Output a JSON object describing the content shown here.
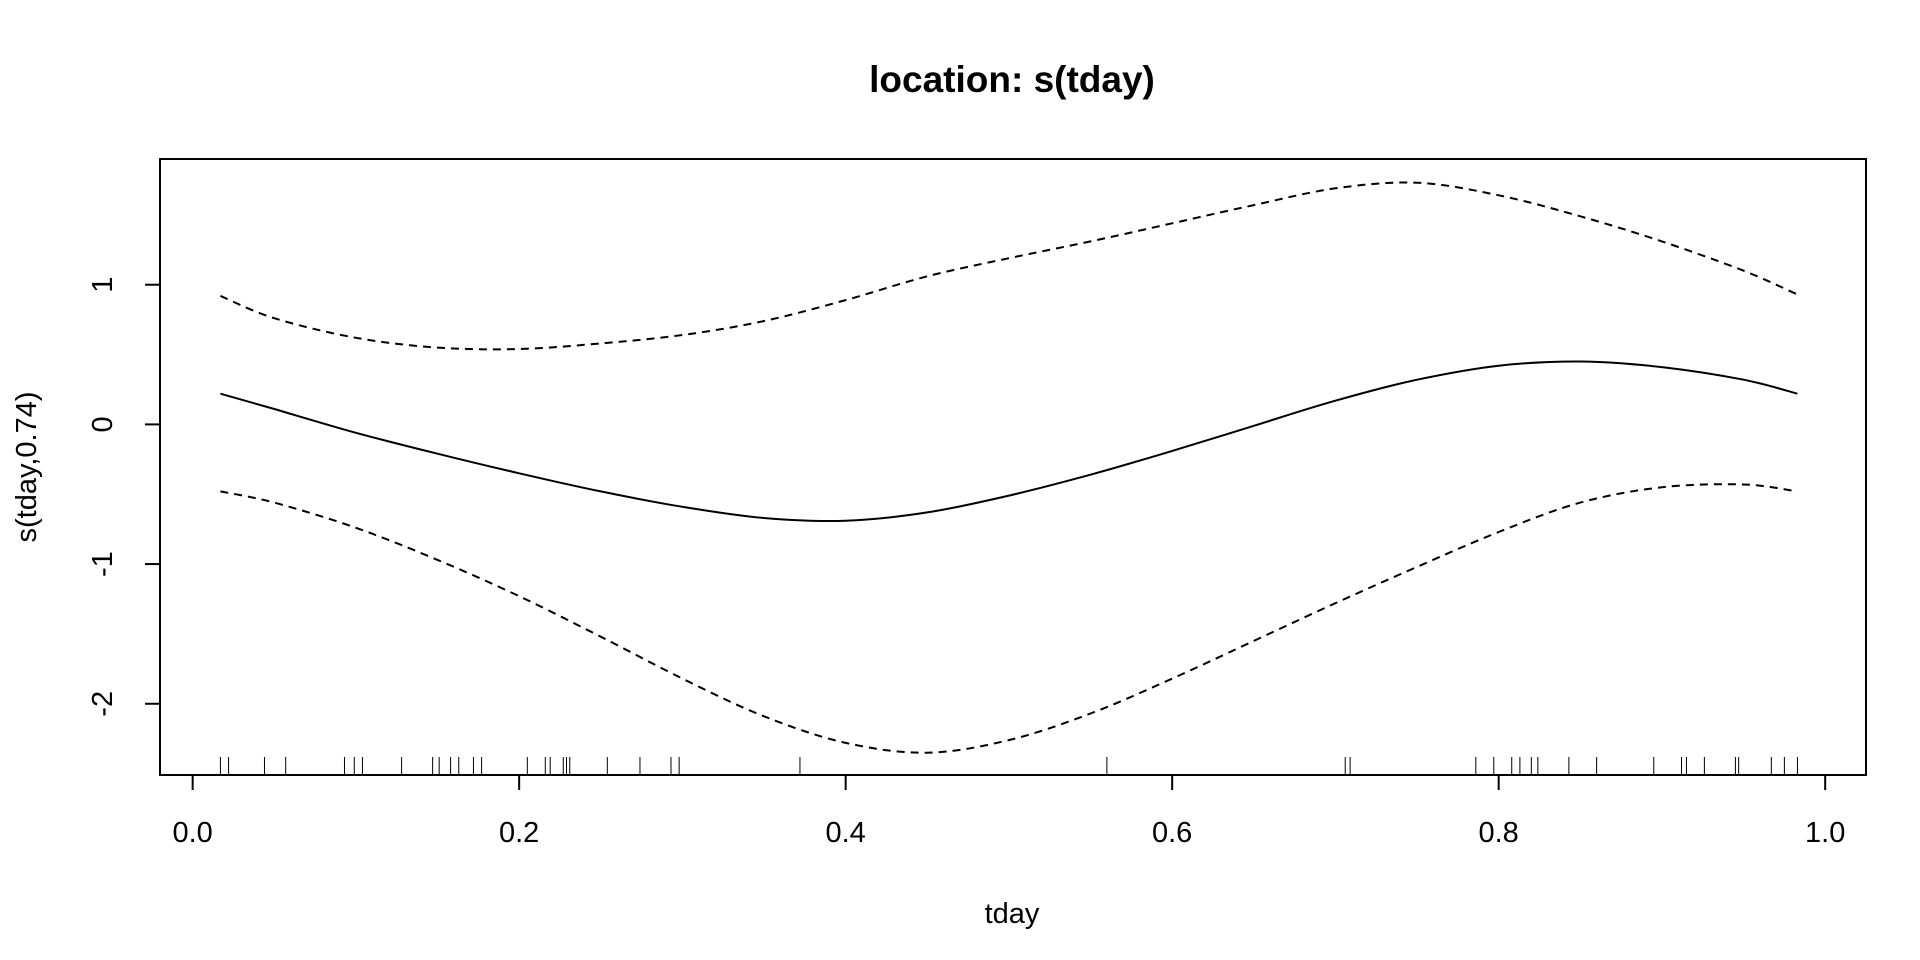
{
  "chart_data": {
    "type": "line",
    "title": "location: s(tday)",
    "xlabel": "tday",
    "ylabel": "s(tday,0.74)",
    "xlim": [
      -0.02,
      1.025
    ],
    "ylim": [
      -2.51,
      1.9
    ],
    "xticks": [
      0.0,
      0.2,
      0.4,
      0.6,
      0.8,
      1.0
    ],
    "xtick_labels": [
      "0.0",
      "0.2",
      "0.4",
      "0.6",
      "0.8",
      "1.0"
    ],
    "yticks": [
      -2,
      -1,
      0,
      1
    ],
    "ytick_labels": [
      "-2",
      "-1",
      "0",
      "1"
    ],
    "grid": false,
    "series": [
      {
        "style": "solid",
        "x": [
          0.017,
          0.05,
          0.1,
          0.15,
          0.2,
          0.25,
          0.3,
          0.35,
          0.4,
          0.45,
          0.5,
          0.55,
          0.6,
          0.65,
          0.7,
          0.75,
          0.8,
          0.85,
          0.9,
          0.95,
          0.983
        ],
        "y": [
          0.22,
          0.11,
          -0.06,
          -0.21,
          -0.35,
          -0.48,
          -0.59,
          -0.67,
          -0.69,
          -0.63,
          -0.51,
          -0.36,
          -0.19,
          -0.01,
          0.17,
          0.32,
          0.42,
          0.45,
          0.41,
          0.32,
          0.22
        ]
      },
      {
        "style": "dashed",
        "x": [
          0.017,
          0.05,
          0.1,
          0.15,
          0.2,
          0.25,
          0.3,
          0.35,
          0.4,
          0.45,
          0.5,
          0.55,
          0.6,
          0.65,
          0.7,
          0.75,
          0.8,
          0.85,
          0.9,
          0.95,
          0.983
        ],
        "y": [
          0.92,
          0.76,
          0.62,
          0.55,
          0.54,
          0.58,
          0.64,
          0.74,
          0.89,
          1.06,
          1.19,
          1.31,
          1.44,
          1.57,
          1.69,
          1.73,
          1.64,
          1.49,
          1.31,
          1.1,
          0.93
        ]
      },
      {
        "style": "dashed",
        "x": [
          0.017,
          0.05,
          0.1,
          0.15,
          0.2,
          0.25,
          0.3,
          0.35,
          0.4,
          0.45,
          0.5,
          0.55,
          0.6,
          0.65,
          0.7,
          0.75,
          0.8,
          0.85,
          0.9,
          0.95,
          0.983
        ],
        "y": [
          -0.48,
          -0.56,
          -0.74,
          -0.97,
          -1.23,
          -1.52,
          -1.82,
          -2.09,
          -2.28,
          -2.35,
          -2.26,
          -2.07,
          -1.82,
          -1.55,
          -1.28,
          -1.02,
          -0.77,
          -0.56,
          -0.45,
          -0.43,
          -0.48
        ]
      }
    ],
    "rug": [
      0.017,
      0.022,
      0.044,
      0.057,
      0.093,
      0.099,
      0.104,
      0.128,
      0.147,
      0.151,
      0.158,
      0.163,
      0.172,
      0.177,
      0.205,
      0.216,
      0.219,
      0.227,
      0.229,
      0.231,
      0.254,
      0.274,
      0.293,
      0.298,
      0.372,
      0.56,
      0.706,
      0.709,
      0.786,
      0.797,
      0.808,
      0.813,
      0.82,
      0.824,
      0.843,
      0.86,
      0.895,
      0.912,
      0.915,
      0.926,
      0.945,
      0.947,
      0.967,
      0.975,
      0.983
    ]
  }
}
